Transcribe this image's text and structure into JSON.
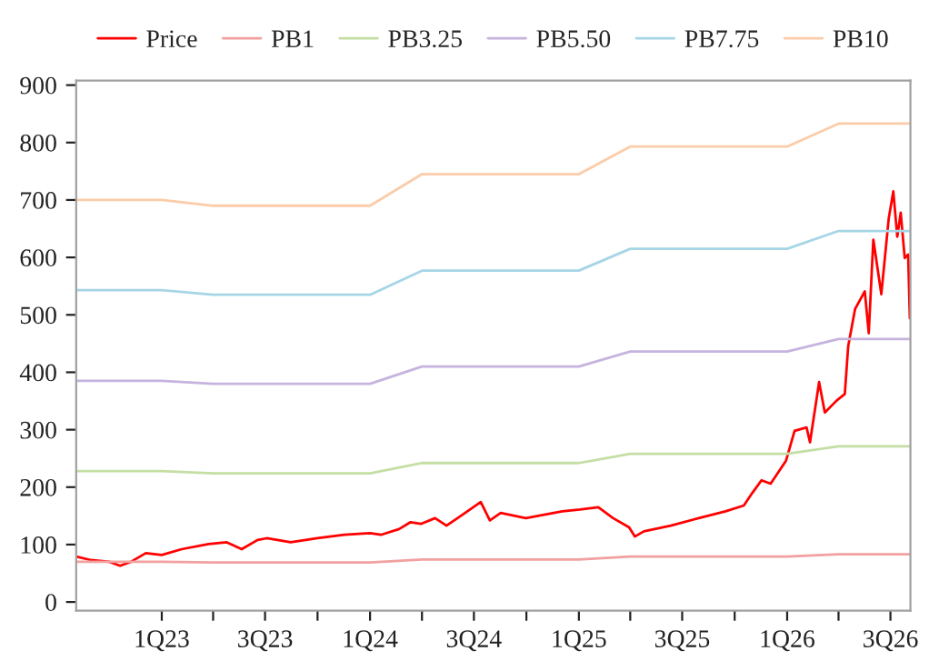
{
  "chart_data": {
    "type": "line",
    "legend": "top",
    "grid": false,
    "marker": "none",
    "line_style": "solid",
    "xlim": [
      "2022-08-04",
      "2026-08-05"
    ],
    "xticks": [
      {
        "value": "2023-01-01",
        "label": "1Q23"
      },
      {
        "value": "2023-04-01",
        "label": null
      },
      {
        "value": "2023-07-01",
        "label": "3Q23"
      },
      {
        "value": "2023-10-01",
        "label": null
      },
      {
        "value": "2024-01-01",
        "label": "1Q24"
      },
      {
        "value": "2024-04-01",
        "label": null
      },
      {
        "value": "2024-07-01",
        "label": "3Q24"
      },
      {
        "value": "2024-10-01",
        "label": null
      },
      {
        "value": "2025-01-01",
        "label": "1Q25"
      },
      {
        "value": "2025-04-01",
        "label": null
      },
      {
        "value": "2025-07-01",
        "label": "3Q25"
      },
      {
        "value": "2025-10-01",
        "label": null
      },
      {
        "value": "2026-01-01",
        "label": "1Q26"
      },
      {
        "value": "2026-04-01",
        "label": null
      },
      {
        "value": "2026-07-01",
        "label": "3Q26"
      }
    ],
    "ylim": [
      -15,
      908
    ],
    "yticks": [
      0,
      100,
      200,
      300,
      400,
      500,
      600,
      700,
      800,
      900
    ],
    "series": [
      {
        "name": "Price",
        "color": "#ff0000",
        "x": [
          "2022-08-04",
          "2022-08-30",
          "2022-10-01",
          "2022-10-20",
          "2022-11-08",
          "2022-12-04",
          "2023-01-01",
          "2023-02-05",
          "2023-03-24",
          "2023-04-25",
          "2023-05-21",
          "2023-06-18",
          "2023-07-04",
          "2023-08-15",
          "2023-10-01",
          "2023-11-17",
          "2024-01-01",
          "2024-01-20",
          "2024-02-21",
          "2024-03-12",
          "2024-03-30",
          "2024-04-24",
          "2024-05-14",
          "2024-06-11",
          "2024-07-13",
          "2024-07-29",
          "2024-08-17",
          "2024-09-30",
          "2024-11-01",
          "2024-12-03",
          "2025-01-03",
          "2025-02-04",
          "2025-03-02",
          "2025-03-30",
          "2025-04-09",
          "2025-04-25",
          "2025-06-11",
          "2025-07-30",
          "2025-09-15",
          "2025-10-17",
          "2025-11-01",
          "2025-11-17",
          "2025-12-03",
          "2025-12-30",
          "2026-01-14",
          "2026-02-04",
          "2026-02-10",
          "2026-02-26",
          "2026-03-08",
          "2026-03-29",
          "2026-04-12",
          "2026-04-18",
          "2026-04-30",
          "2026-05-17",
          "2026-05-24",
          "2026-06-01",
          "2026-06-15",
          "2026-06-28",
          "2026-07-06",
          "2026-07-13",
          "2026-07-19",
          "2026-07-26",
          "2026-08-01",
          "2026-08-04"
        ],
        "values": [
          79,
          73,
          70,
          63,
          70,
          85,
          82,
          92,
          101,
          104,
          92,
          108,
          111,
          104,
          111,
          117,
          120,
          117,
          127,
          139,
          136,
          146,
          133,
          152,
          174,
          142,
          155,
          146,
          152,
          158,
          161,
          165,
          146,
          130,
          114,
          123,
          133,
          146,
          158,
          168,
          190,
          212,
          206,
          246,
          298,
          304,
          278,
          383,
          330,
          351,
          362,
          446,
          510,
          541,
          468,
          631,
          536,
          668,
          715,
          636,
          678,
          599,
          605,
          494
        ]
      },
      {
        "name": "PB1",
        "color": "#f2a0a0",
        "x": [
          "2022-08-04",
          "2023-01-01",
          "2023-04-01",
          "2024-01-01",
          "2024-04-01",
          "2025-01-01",
          "2025-04-01",
          "2026-01-01",
          "2026-04-01",
          "2026-08-05"
        ],
        "values": [
          70,
          70,
          69,
          69,
          74,
          74,
          79,
          79,
          83,
          83
        ]
      },
      {
        "name": "PB3.25",
        "color": "#c4dea4",
        "x": [
          "2022-08-04",
          "2023-01-01",
          "2023-04-01",
          "2024-01-01",
          "2024-04-01",
          "2025-01-01",
          "2025-04-01",
          "2026-01-01",
          "2026-04-01",
          "2026-08-05"
        ],
        "values": [
          228,
          228,
          224,
          224,
          242,
          242,
          258,
          258,
          271,
          271
        ]
      },
      {
        "name": "PB5.50",
        "color": "#c6b4de",
        "x": [
          "2022-08-04",
          "2023-01-01",
          "2023-04-01",
          "2024-01-01",
          "2024-04-01",
          "2025-01-01",
          "2025-04-01",
          "2026-01-01",
          "2026-04-01",
          "2026-08-05"
        ],
        "values": [
          385,
          385,
          380,
          380,
          410,
          410,
          436,
          436,
          458,
          458
        ]
      },
      {
        "name": "PB7.75",
        "color": "#a6d6e6",
        "x": [
          "2022-08-04",
          "2023-01-01",
          "2023-04-01",
          "2024-01-01",
          "2024-04-01",
          "2025-01-01",
          "2025-04-01",
          "2026-01-01",
          "2026-04-01",
          "2026-08-05"
        ],
        "values": [
          543,
          543,
          535,
          535,
          577,
          577,
          615,
          615,
          646,
          646
        ]
      },
      {
        "name": "PB10",
        "color": "#fccca8",
        "x": [
          "2022-08-04",
          "2023-01-01",
          "2023-04-01",
          "2024-01-01",
          "2024-04-01",
          "2025-01-01",
          "2025-04-01",
          "2026-01-01",
          "2026-04-01",
          "2026-08-05"
        ],
        "values": [
          700,
          700,
          690,
          690,
          745,
          745,
          793,
          793,
          833,
          833
        ]
      }
    ]
  }
}
